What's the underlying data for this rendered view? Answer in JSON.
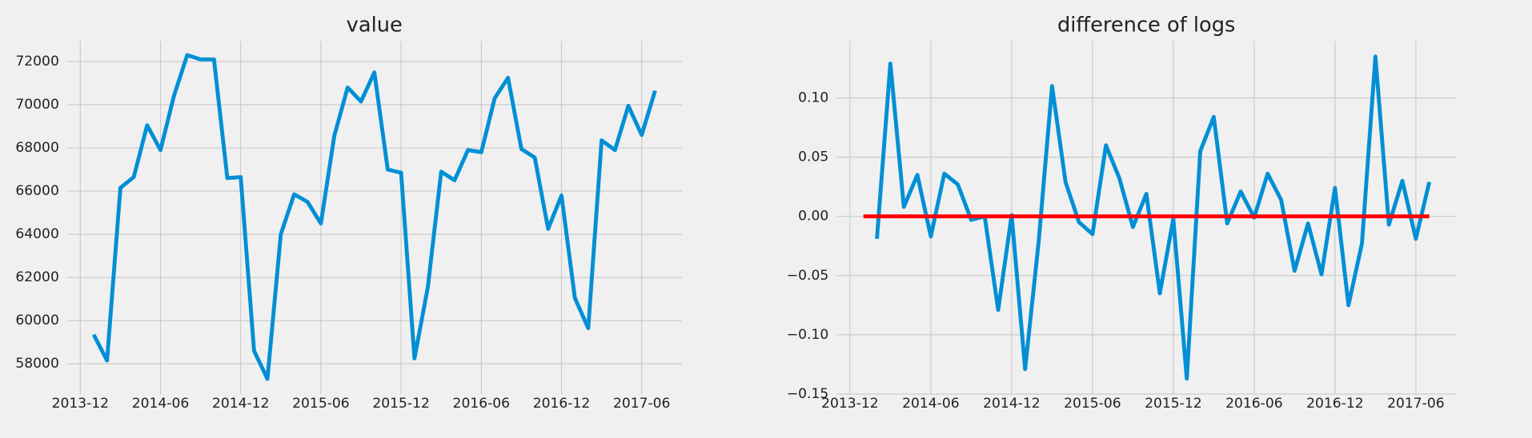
{
  "chart_data": [
    {
      "type": "line",
      "title": "value",
      "x": [
        "2014-01",
        "2014-02",
        "2014-03",
        "2014-04",
        "2014-05",
        "2014-06",
        "2014-07",
        "2014-08",
        "2014-09",
        "2014-10",
        "2014-11",
        "2014-12",
        "2015-01",
        "2015-02",
        "2015-03",
        "2015-04",
        "2015-05",
        "2015-06",
        "2015-07",
        "2015-08",
        "2015-09",
        "2015-10",
        "2015-11",
        "2015-12",
        "2016-01",
        "2016-02",
        "2016-03",
        "2016-04",
        "2016-05",
        "2016-06",
        "2016-07",
        "2016-08",
        "2016-09",
        "2016-10",
        "2016-11",
        "2016-12",
        "2017-01",
        "2017-02",
        "2017-03",
        "2017-04",
        "2017-05",
        "2017-06",
        "2017-07"
      ],
      "series": [
        {
          "color": "#008fd5",
          "values": [
            59350,
            58150,
            66150,
            66650,
            69050,
            67900,
            70400,
            72300,
            72100,
            72100,
            66600,
            66650,
            58600,
            57300,
            64000,
            65850,
            65500,
            64500,
            68550,
            70800,
            70150,
            71500,
            67000,
            66850,
            58250,
            61550,
            66900,
            66500,
            67900,
            67800,
            70300,
            71250,
            67950,
            67550,
            64250,
            65800,
            61050,
            59650,
            68350,
            67900,
            69950,
            68600,
            70650
          ]
        }
      ],
      "xlim": [
        "2013-11",
        "2017-09"
      ],
      "xticks": [
        "2013-12",
        "2014-06",
        "2014-12",
        "2015-06",
        "2015-12",
        "2016-06",
        "2016-12",
        "2017-06"
      ],
      "ylim": [
        56600,
        72950
      ],
      "yticks": [
        58000,
        60000,
        62000,
        64000,
        66000,
        68000,
        70000,
        72000
      ],
      "grid": true
    },
    {
      "type": "line",
      "title": "difference of logs",
      "x": [
        "2014-01",
        "2014-02",
        "2014-03",
        "2014-04",
        "2014-05",
        "2014-06",
        "2014-07",
        "2014-08",
        "2014-09",
        "2014-10",
        "2014-11",
        "2014-12",
        "2015-01",
        "2015-02",
        "2015-03",
        "2015-04",
        "2015-05",
        "2015-06",
        "2015-07",
        "2015-08",
        "2015-09",
        "2015-10",
        "2015-11",
        "2015-12",
        "2016-01",
        "2016-02",
        "2016-03",
        "2016-04",
        "2016-05",
        "2016-06",
        "2016-07",
        "2016-08",
        "2016-09",
        "2016-10",
        "2016-11",
        "2016-12",
        "2017-01",
        "2017-02",
        "2017-03",
        "2017-04",
        "2017-05",
        "2017-06",
        "2017-07"
      ],
      "series": [
        {
          "color": "#008fd5",
          "values": [
            null,
            -0.019,
            0.129,
            0.008,
            0.035,
            -0.017,
            0.036,
            0.027,
            -0.003,
            0.0,
            -0.079,
            0.001,
            -0.129,
            -0.022,
            0.11,
            0.029,
            -0.005,
            -0.015,
            0.06,
            0.032,
            -0.009,
            0.019,
            -0.065,
            -0.002,
            -0.137,
            0.055,
            0.084,
            -0.006,
            0.021,
            -0.001,
            0.036,
            0.014,
            -0.046,
            -0.006,
            -0.049,
            0.024,
            -0.075,
            -0.023,
            0.135,
            -0.007,
            0.03,
            -0.019,
            0.029
          ]
        },
        {
          "color": "#ff0000",
          "values": [
            0,
            0,
            0,
            0,
            0,
            0,
            0,
            0,
            0,
            0,
            0,
            0,
            0,
            0,
            0,
            0,
            0,
            0,
            0,
            0,
            0,
            0,
            0,
            0,
            0,
            0,
            0,
            0,
            0,
            0,
            0,
            0,
            0,
            0,
            0,
            0,
            0,
            0,
            0,
            0,
            0,
            0,
            0
          ]
        }
      ],
      "xlim": [
        "2013-11",
        "2017-09"
      ],
      "xticks": [
        "2013-12",
        "2014-06",
        "2014-12",
        "2015-06",
        "2015-12",
        "2016-06",
        "2016-12",
        "2017-06"
      ],
      "ylim": [
        -0.15,
        0.148
      ],
      "yticks": [
        {
          "value": -0.15,
          "label": "−0.15"
        },
        {
          "value": -0.1,
          "label": "−0.10"
        },
        {
          "value": -0.05,
          "label": "−0.05"
        },
        {
          "value": 0,
          "label": "0.00"
        },
        {
          "value": 0.05,
          "label": "0.05"
        },
        {
          "value": 0.1,
          "label": "0.10"
        }
      ],
      "grid": true
    }
  ]
}
